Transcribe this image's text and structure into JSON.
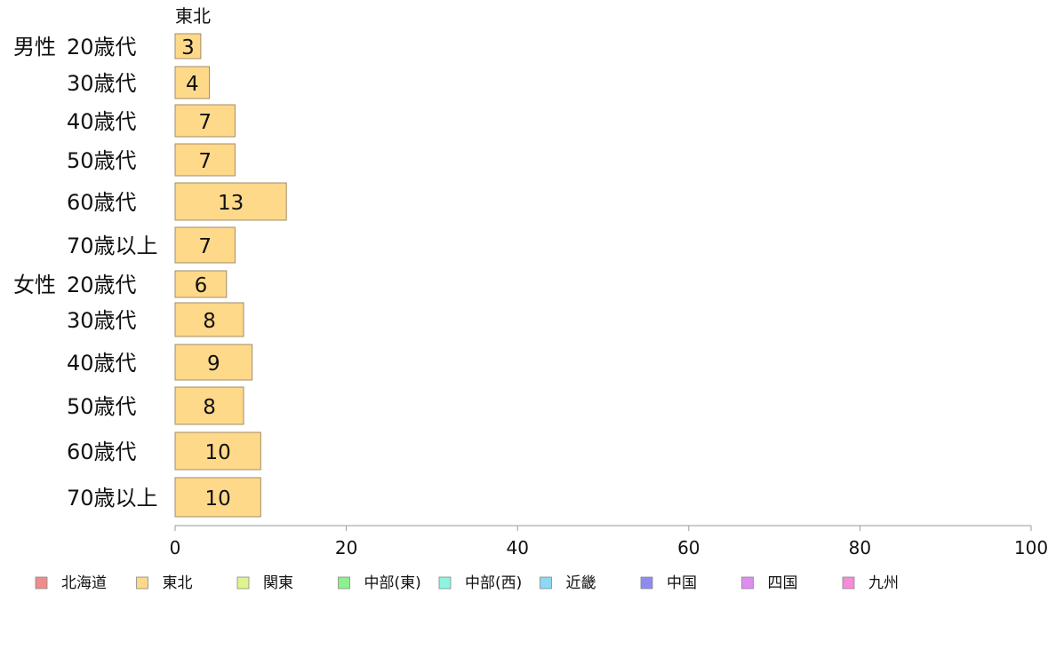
{
  "chart_data": {
    "type": "bar",
    "orientation": "horizontal",
    "stacked": true,
    "region_label": "東北",
    "groups": [
      {
        "name": "男性",
        "categories": [
          "20歳代",
          "30歳代",
          "40歳代",
          "50歳代",
          "60歳代",
          "70歳以上"
        ]
      },
      {
        "name": "女性",
        "categories": [
          "20歳代",
          "30歳代",
          "40歳代",
          "50歳代",
          "60歳代",
          "70歳以上"
        ]
      }
    ],
    "series": [
      {
        "name": "東北",
        "color": "#ffd98a",
        "values": [
          3,
          4,
          7,
          7,
          13,
          7,
          6,
          8,
          9,
          8,
          10,
          10
        ]
      }
    ],
    "xlim": [
      0,
      100
    ],
    "xticks": [
      "0",
      "20",
      "40",
      "60",
      "80",
      "100"
    ],
    "legend": {
      "placement": "bottom",
      "items": [
        {
          "label": "北海道",
          "color": "#f08c8c"
        },
        {
          "label": "東北",
          "color": "#ffd98a"
        },
        {
          "label": "関東",
          "color": "#ddf58c"
        },
        {
          "label": "中部(東)",
          "color": "#8cf08c"
        },
        {
          "label": "中部(西)",
          "color": "#8cf5dd"
        },
        {
          "label": "近畿",
          "color": "#8cd9f5"
        },
        {
          "label": "中国",
          "color": "#8c8cf0"
        },
        {
          "label": "四国",
          "color": "#dd8cf0"
        },
        {
          "label": "九州",
          "color": "#f58cd9"
        }
      ]
    },
    "grid": false
  }
}
